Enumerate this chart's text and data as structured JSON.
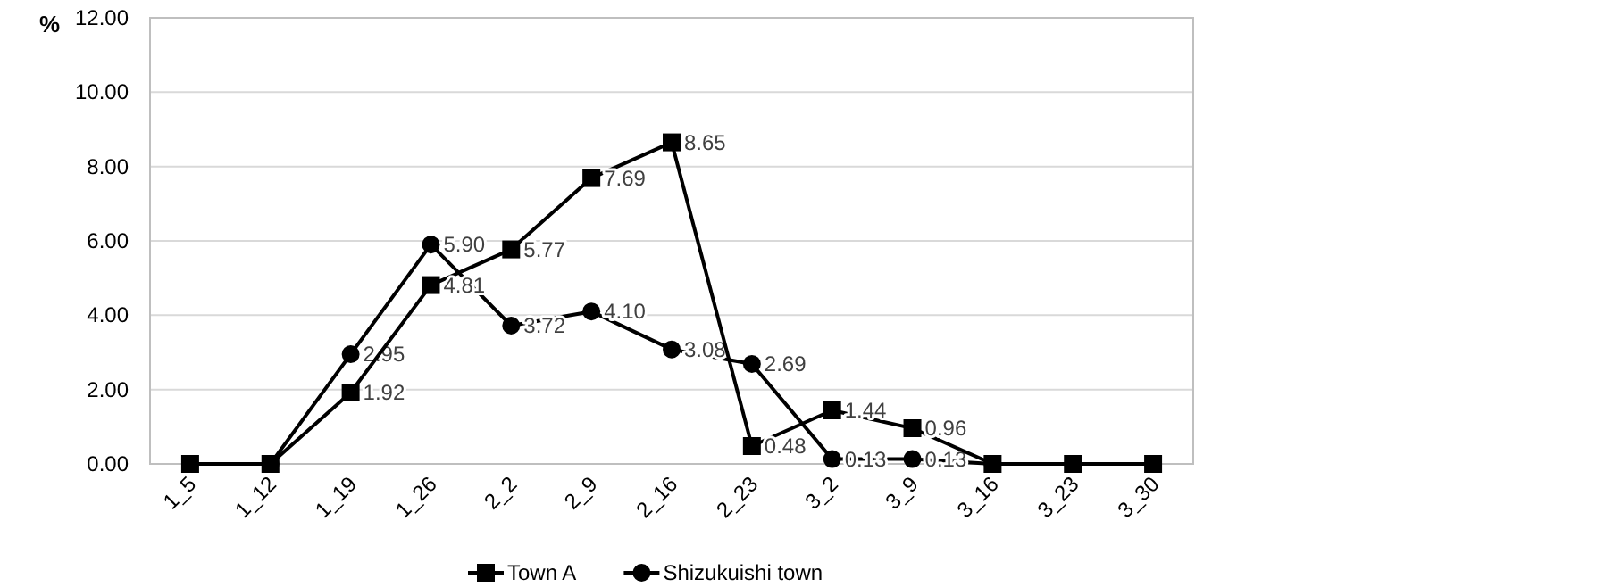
{
  "chart_data": {
    "type": "line",
    "ylabel": "%",
    "categories": [
      "1_5",
      "1_12",
      "1_19",
      "1_26",
      "2_2",
      "2_9",
      "2_16",
      "2_23",
      "3_2",
      "3_9",
      "3_16",
      "3_23",
      "3_30"
    ],
    "series": [
      {
        "name": "Town A",
        "color": "#000000",
        "marker": "square",
        "values": [
          0,
          0,
          1.92,
          4.81,
          5.77,
          7.69,
          8.65,
          0.48,
          1.44,
          0.96,
          0,
          0,
          0
        ],
        "value_labels": [
          null,
          null,
          "1.92",
          "4.81",
          "5.77",
          "7.69",
          "8.65",
          "0.48",
          "1.44",
          "0.96",
          null,
          null,
          null
        ]
      },
      {
        "name": "Shizukuishi town",
        "color": "#000000",
        "marker": "circle",
        "values": [
          null,
          0,
          2.95,
          5.9,
          3.72,
          4.1,
          3.08,
          2.69,
          0.13,
          0.13,
          0,
          null,
          null
        ],
        "value_labels": [
          null,
          null,
          "2.95",
          "5.90",
          "3.72",
          "4.10",
          "3.08",
          "2.69",
          "0.13",
          "0.13",
          null,
          null,
          null
        ]
      }
    ],
    "ylim": [
      0,
      12
    ],
    "yticks": [
      {
        "value": 0,
        "label": "0.00"
      },
      {
        "value": 2,
        "label": "2.00"
      },
      {
        "value": 4,
        "label": "4.00"
      },
      {
        "value": 6,
        "label": "6.00"
      },
      {
        "value": 8,
        "label": "8.00"
      },
      {
        "value": 10,
        "label": "10.00"
      },
      {
        "value": 12,
        "label": "12.00"
      }
    ],
    "grid": "y",
    "legend": "bottom",
    "line_style": "solid"
  }
}
